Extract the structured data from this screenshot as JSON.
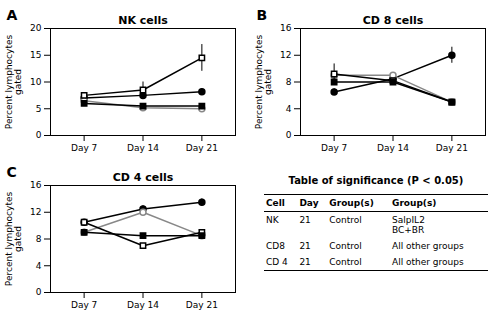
{
  "chart_data": [
    {
      "type": "line",
      "title": "NK cells",
      "annotation": "A",
      "ylabel": "Percent lymphocytes\ngated",
      "x": [
        7,
        14,
        21
      ],
      "xlim": [
        3,
        25
      ],
      "xticks": [
        {
          "value": 7,
          "label": "Day 7"
        },
        {
          "value": 14,
          "label": "Day 14"
        },
        {
          "value": 21,
          "label": "Day 21"
        }
      ],
      "ylim": [
        0,
        20
      ],
      "yticks": [
        0,
        5,
        10,
        15,
        20
      ],
      "grid": false,
      "series": [
        {
          "color": "#000000",
          "marker": "circle",
          "values": [
            7.0,
            7.5,
            8.2
          ],
          "yerr": [
            0.3,
            0.3,
            0.5
          ]
        },
        {
          "color": "#888888",
          "marker": "circle_open",
          "values": [
            6.5,
            5.2,
            5.0
          ],
          "yerr": [
            0.3,
            0.3,
            0.3
          ]
        },
        {
          "color": "#000000",
          "marker": "square_open",
          "values": [
            7.5,
            8.5,
            14.5
          ],
          "yerr": [
            0.3,
            1.5,
            2.5
          ]
        },
        {
          "color": "#000000",
          "marker": "square",
          "values": [
            6.0,
            5.5,
            5.5
          ],
          "yerr": [
            0.3,
            0.3,
            0.3
          ]
        }
      ]
    },
    {
      "type": "line",
      "title": "CD 8 cells",
      "annotation": "B",
      "ylabel": "Percent lymphocytes\ngated",
      "x": [
        7,
        14,
        21
      ],
      "xlim": [
        3,
        25
      ],
      "xticks": [
        {
          "value": 7,
          "label": "Day 7"
        },
        {
          "value": 14,
          "label": "Day 14"
        },
        {
          "value": 21,
          "label": "Day 21"
        }
      ],
      "ylim": [
        0,
        16
      ],
      "yticks": [
        0,
        4,
        8,
        12,
        16
      ],
      "grid": false,
      "series": [
        {
          "color": "#000000",
          "marker": "circle",
          "values": [
            6.5,
            8.5,
            12.0
          ],
          "yerr": [
            0.5,
            0.3,
            1.2
          ]
        },
        {
          "color": "#888888",
          "marker": "circle_open",
          "values": [
            9.0,
            9.0,
            5.0
          ],
          "yerr": [
            0.3,
            0.3,
            0.3
          ]
        },
        {
          "color": "#000000",
          "marker": "square_open",
          "values": [
            9.2,
            8.2,
            5.0
          ],
          "yerr": [
            1.5,
            0.3,
            0.3
          ]
        },
        {
          "color": "#000000",
          "marker": "square",
          "values": [
            8.0,
            8.0,
            5.0
          ],
          "yerr": [
            0.3,
            0.3,
            0.3
          ]
        }
      ]
    },
    {
      "type": "line",
      "title": "CD 4 cells",
      "annotation": "C",
      "ylabel": "Percent lymphocytes\ngated",
      "x": [
        7,
        14,
        21
      ],
      "xlim": [
        3,
        25
      ],
      "xticks": [
        {
          "value": 7,
          "label": "Day 7"
        },
        {
          "value": 14,
          "label": "Day 14"
        },
        {
          "value": 21,
          "label": "Day 21"
        }
      ],
      "ylim": [
        0,
        16
      ],
      "yticks": [
        0,
        4,
        8,
        12,
        16
      ],
      "grid": false,
      "series": [
        {
          "color": "#000000",
          "marker": "circle",
          "values": [
            10.5,
            12.5,
            13.5
          ],
          "yerr": [
            0.3,
            0.5,
            0.5
          ]
        },
        {
          "color": "#888888",
          "marker": "circle_open",
          "values": [
            9.0,
            12.0,
            8.5
          ],
          "yerr": [
            0.5,
            0.3,
            0.3
          ]
        },
        {
          "color": "#000000",
          "marker": "square_open",
          "values": [
            10.5,
            7.0,
            9.0
          ],
          "yerr": [
            0.3,
            0.3,
            0.3
          ]
        },
        {
          "color": "#000000",
          "marker": "square",
          "values": [
            9.0,
            8.5,
            8.5
          ],
          "yerr": [
            0.3,
            0.3,
            0.3
          ]
        }
      ]
    },
    {
      "type": "table",
      "title": "Table of significance (P < 0.05)",
      "headers": [
        "Cell",
        "Day",
        "Group(s)",
        "Group(s)"
      ],
      "rows": [
        [
          "NK",
          "21",
          "Control",
          "SalpIL2\nBC+BR"
        ],
        [
          "CD8",
          "21",
          "Control",
          "All other groups"
        ],
        [
          "CD 4",
          "21",
          "Control",
          "All other groups"
        ]
      ]
    }
  ]
}
